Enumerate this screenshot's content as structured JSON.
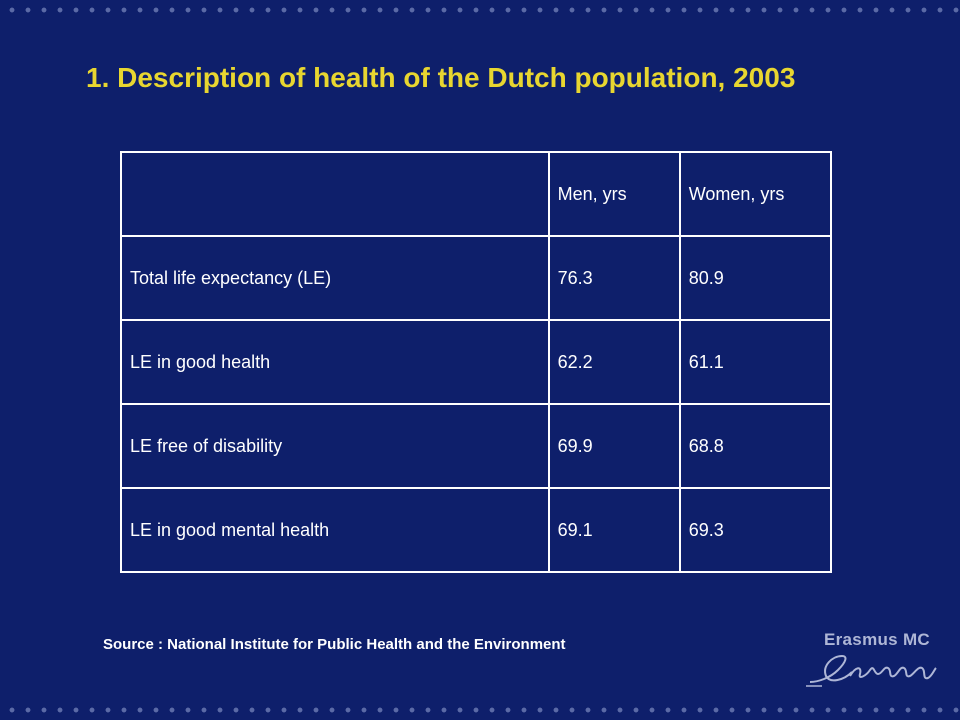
{
  "slide": {
    "title": "1. Description of health of the Dutch population, 2003",
    "source": "Source : National Institute for Public Health and the Environment"
  },
  "table": {
    "headers": [
      "",
      "Men, yrs",
      "Women, yrs"
    ],
    "rows": [
      [
        "Total life expectancy (LE)",
        "76.3",
        "80.9"
      ],
      [
        "LE in good health",
        "62.2",
        "61.1"
      ],
      [
        "LE free of disability",
        "69.9",
        "68.8"
      ],
      [
        "LE in good mental health",
        "69.1",
        "69.3"
      ]
    ]
  },
  "logo": {
    "name": "Erasmus MC",
    "signature_text": "Erasmus",
    "icon": "erasmus-signature-icon"
  },
  "colors": {
    "background": "#0e1f6b",
    "title": "#e8d630",
    "text": "#ffffff",
    "dots": "#5b6aa6",
    "logo": "#aeb6d6"
  }
}
